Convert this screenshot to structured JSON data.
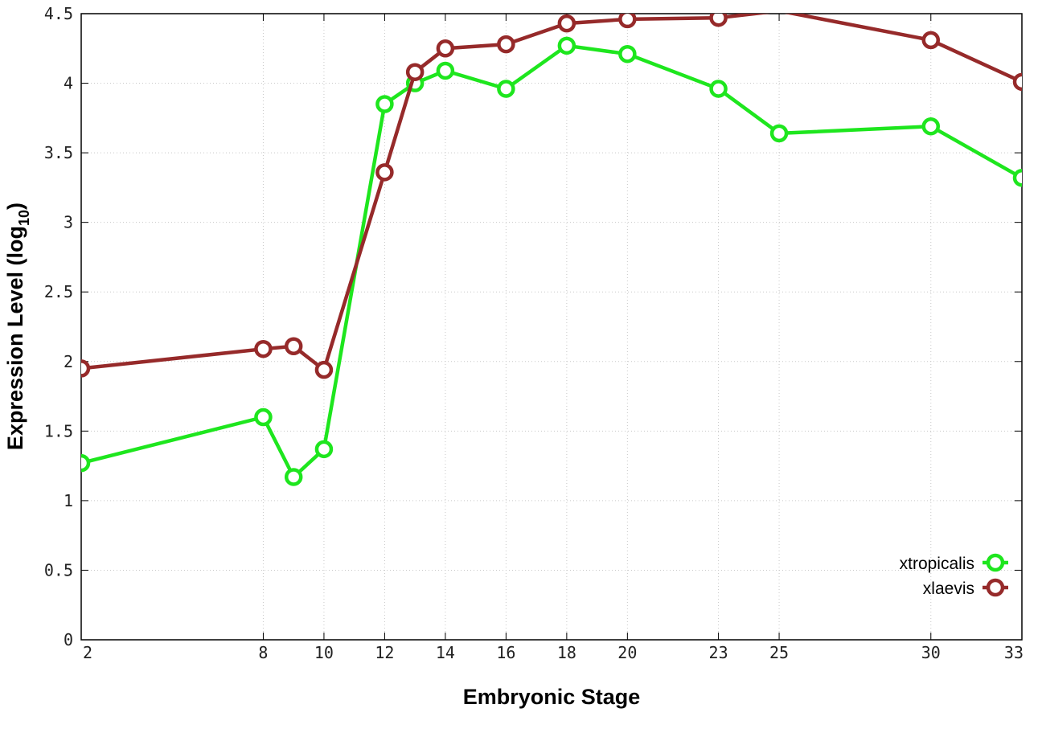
{
  "chart_data": {
    "type": "line",
    "xlabel": "Embryonic Stage",
    "ylabel": "Expression Level (log",
    "ylabel_sub": "10",
    "ylabel_close": ")",
    "xlim": [
      2,
      33
    ],
    "ylim": [
      0,
      4.5
    ],
    "x_ticks": [
      2,
      8,
      10,
      12,
      14,
      16,
      18,
      20,
      23,
      25,
      30,
      33
    ],
    "x_tick_labels": [
      "2",
      "8",
      "10",
      "12",
      "14",
      "16",
      "18",
      "20",
      "23",
      "25",
      "30",
      "33"
    ],
    "y_ticks": [
      0,
      0.5,
      1,
      1.5,
      2,
      2.5,
      3,
      3.5,
      4,
      4.5
    ],
    "y_tick_labels": [
      "0",
      "0.5",
      "1",
      "1.5",
      "2",
      "2.5",
      "3",
      "3.5",
      "4",
      "4.5"
    ],
    "grid": true,
    "legend_position": "bottom-right",
    "series": [
      {
        "name": "xtropicalis",
        "color": "#1ee61e",
        "x": [
          2,
          8,
          9,
          10,
          12,
          13,
          14,
          16,
          18,
          20,
          23,
          25,
          30,
          33
        ],
        "y": [
          1.27,
          1.6,
          1.17,
          1.37,
          3.85,
          4.0,
          4.09,
          3.96,
          4.27,
          4.21,
          3.96,
          3.64,
          3.69,
          3.32
        ],
        "markers": [
          true,
          true,
          true,
          true,
          true,
          true,
          true,
          true,
          true,
          true,
          true,
          true,
          true,
          true
        ]
      },
      {
        "name": "xlaevis",
        "color": "#962a2a",
        "x": [
          2,
          8,
          9,
          10,
          12,
          13,
          14,
          16,
          18,
          20,
          23,
          25,
          30,
          33
        ],
        "y": [
          1.95,
          2.09,
          2.11,
          1.94,
          3.36,
          4.08,
          4.25,
          4.28,
          4.43,
          4.46,
          4.47,
          4.52,
          4.31,
          4.01
        ],
        "markers": [
          true,
          true,
          true,
          true,
          true,
          true,
          true,
          true,
          true,
          true,
          true,
          false,
          true,
          true
        ]
      }
    ]
  }
}
